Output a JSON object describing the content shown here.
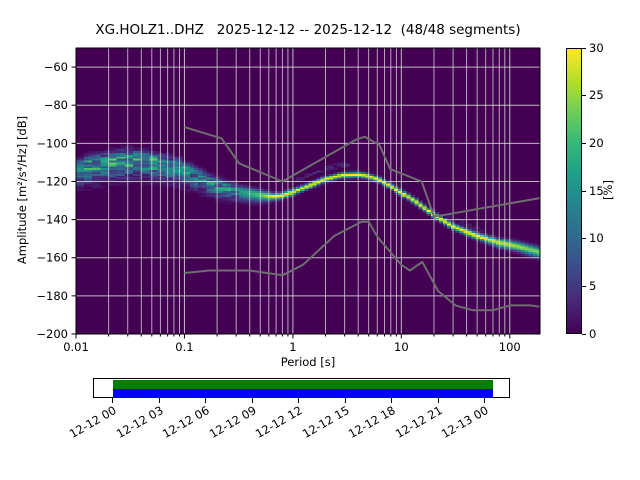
{
  "title": "XG.HOLZ1..DHZ   2025-12-12 -- 2025-12-12  (48/48 segments)",
  "axes": {
    "xlabel": "Period [s]",
    "ylabel": "Amplitude [m²/s⁴/Hz] [dB]",
    "x_ticks": [
      0.01,
      0.1,
      1,
      10,
      100
    ],
    "x_tick_labels": [
      "0.01",
      "0.1",
      "1",
      "10",
      "100"
    ],
    "y_ticks": [
      -200,
      -180,
      -160,
      -140,
      -120,
      -100,
      -80,
      -60
    ],
    "y_tick_labels": [
      "−200",
      "−180",
      "−160",
      "−140",
      "−120",
      "−100",
      "−80",
      "−60"
    ]
  },
  "colorbar": {
    "label": "[%]",
    "ticks": [
      0,
      5,
      10,
      15,
      20,
      25,
      30
    ],
    "tick_labels": [
      "0",
      "5",
      "10",
      "15",
      "20",
      "25",
      "30"
    ],
    "range": [
      0,
      30
    ]
  },
  "chart_data": {
    "type": "heatmap",
    "title": "XG.HOLZ1..DHZ   2025-12-12 -- 2025-12-12  (48/48 segments)",
    "xlabel": "Period [s]",
    "ylabel": "Amplitude [m²/s⁴/Hz] [dB]",
    "x_scale": "log",
    "x_range": [
      0.01,
      190
    ],
    "y_range": [
      -200,
      -50
    ],
    "value_unit": "[%]",
    "value_range": [
      0,
      30
    ],
    "colormap": "viridis",
    "colormap_stops": [
      "#440154",
      "#482878",
      "#3e4a89",
      "#31688e",
      "#26828e",
      "#1f9e89",
      "#35b779",
      "#6dcd59",
      "#b5de2b",
      "#fde725"
    ],
    "grid_color": "#d9d9d9",
    "noise_model_color": "#6e6e6e",
    "psd_band": {
      "periods": [
        0.01,
        0.015,
        0.022,
        0.03,
        0.045,
        0.065,
        0.09,
        0.12,
        0.17,
        0.25,
        0.35,
        0.5,
        0.65,
        0.8,
        1.0,
        1.4,
        2.0,
        2.8,
        4.0,
        5.0,
        6.3,
        8.0,
        10,
        14,
        20,
        30,
        50,
        80,
        120,
        190
      ],
      "mode_db": [
        -112.5,
        -110.5,
        -109,
        -108.2,
        -108.8,
        -110.5,
        -112.5,
        -115.5,
        -120,
        -123.5,
        -125.5,
        -127,
        -127.8,
        -127.3,
        -125.5,
        -122.3,
        -118.8,
        -116.8,
        -116.5,
        -117.2,
        -119.2,
        -122.5,
        -125.8,
        -131,
        -137.5,
        -143.5,
        -148.5,
        -152,
        -154,
        -157
      ],
      "sigma_lo": [
        5.5,
        5.5,
        5.5,
        5.5,
        5.2,
        5.0,
        4.8,
        4.5,
        4.2,
        3.6,
        2.8,
        2.2,
        1.3,
        1.2,
        1.1,
        1.0,
        0.9,
        0.9,
        0.9,
        0.9,
        0.9,
        0.9,
        1.0,
        1.0,
        1.0,
        1.1,
        1.2,
        1.5,
        1.7,
        2.0
      ],
      "sigma_hi": [
        2.6,
        2.7,
        2.8,
        2.8,
        2.7,
        2.6,
        2.5,
        2.4,
        2.2,
        2.0,
        1.8,
        1.5,
        1.1,
        1.0,
        1.0,
        0.9,
        0.9,
        0.9,
        0.9,
        0.9,
        0.9,
        0.9,
        1.0,
        1.0,
        1.0,
        1.0,
        1.1,
        1.3,
        1.4,
        1.6
      ],
      "peak_pct": [
        16,
        17,
        18,
        18,
        17,
        16,
        15,
        14,
        14,
        15,
        17,
        22,
        30,
        30,
        28,
        30,
        30,
        30,
        30,
        30,
        30,
        30,
        30,
        30,
        30,
        30,
        30,
        28,
        26,
        24
      ]
    },
    "noise_models": {
      "nhnm": [
        [
          0.1,
          -91.5
        ],
        [
          0.22,
          -97.4
        ],
        [
          0.32,
          -110.5
        ],
        [
          0.8,
          -120.0
        ],
        [
          3.8,
          -98.1
        ],
        [
          4.6,
          -96.5
        ],
        [
          6.3,
          -101.0
        ],
        [
          7.9,
          -113.5
        ],
        [
          15.4,
          -120.0
        ],
        [
          20.0,
          -138.5
        ],
        [
          354.8,
          -126.0
        ]
      ],
      "nlnm": [
        [
          0.1,
          -168.0
        ],
        [
          0.17,
          -166.7
        ],
        [
          0.4,
          -166.7
        ],
        [
          0.8,
          -169.2
        ],
        [
          1.24,
          -163.7
        ],
        [
          2.4,
          -148.6
        ],
        [
          4.3,
          -141.1
        ],
        [
          5.0,
          -141.1
        ],
        [
          6.0,
          -149.0
        ],
        [
          10.0,
          -163.7
        ],
        [
          12.0,
          -166.7
        ],
        [
          15.6,
          -162.2
        ],
        [
          21.9,
          -177.5
        ],
        [
          31.6,
          -185.0
        ],
        [
          45.0,
          -187.5
        ],
        [
          70.0,
          -187.5
        ],
        [
          101.0,
          -185.0
        ],
        [
          154.0,
          -185.0
        ],
        [
          328.0,
          -187.5
        ]
      ]
    }
  },
  "timeline": {
    "tick_labels": [
      "12-12 00",
      "12-12 03",
      "12-12 06",
      "12-12 09",
      "12-12 12",
      "12-12 15",
      "12-12 18",
      "12-12 21",
      "12-13 00"
    ],
    "extent_color": "#008000",
    "segment_color": "#0000ff"
  }
}
